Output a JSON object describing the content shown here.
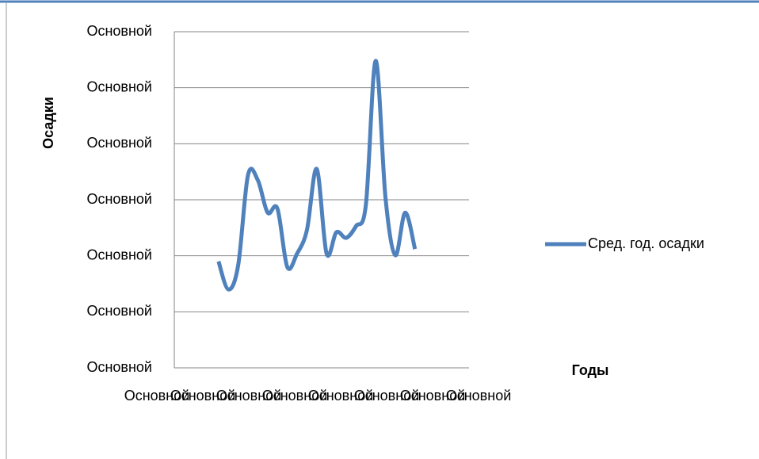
{
  "chart_data": {
    "type": "line",
    "x_title": "Годы",
    "y_title": "Осадки",
    "categories": [
      "Основной",
      null,
      null,
      null,
      "Основной",
      null,
      null,
      null,
      "Основной",
      null,
      null,
      null,
      "Основной",
      null,
      null,
      null,
      "Основной",
      null,
      null,
      null,
      "Основной",
      null,
      null,
      null,
      "Основной",
      null,
      null,
      null,
      "Основной",
      null
    ],
    "series": [
      {
        "name": "Сред. год. осадки",
        "color": "#4f81bd",
        "values": [
          null,
          null,
          null,
          null,
          1.9,
          1.4,
          1.83,
          3.44,
          3.35,
          2.77,
          2.84,
          1.8,
          2.04,
          2.46,
          3.55,
          2.04,
          2.42,
          2.32,
          2.53,
          2.91,
          5.48,
          3.03,
          2.01,
          2.77,
          2.12,
          null,
          null,
          null,
          null,
          null
        ]
      }
    ],
    "ylim": [
      0,
      6
    ],
    "yticks": [
      {
        "value": 0,
        "label": "Основной"
      },
      {
        "value": 1,
        "label": "Основной"
      },
      {
        "value": 2,
        "label": "Основной"
      },
      {
        "value": 3,
        "label": "Основной"
      },
      {
        "value": 4,
        "label": "Основной"
      },
      {
        "value": 5,
        "label": "Основной"
      },
      {
        "value": 6,
        "label": "Основной"
      }
    ],
    "grid": true,
    "legend": "right"
  }
}
